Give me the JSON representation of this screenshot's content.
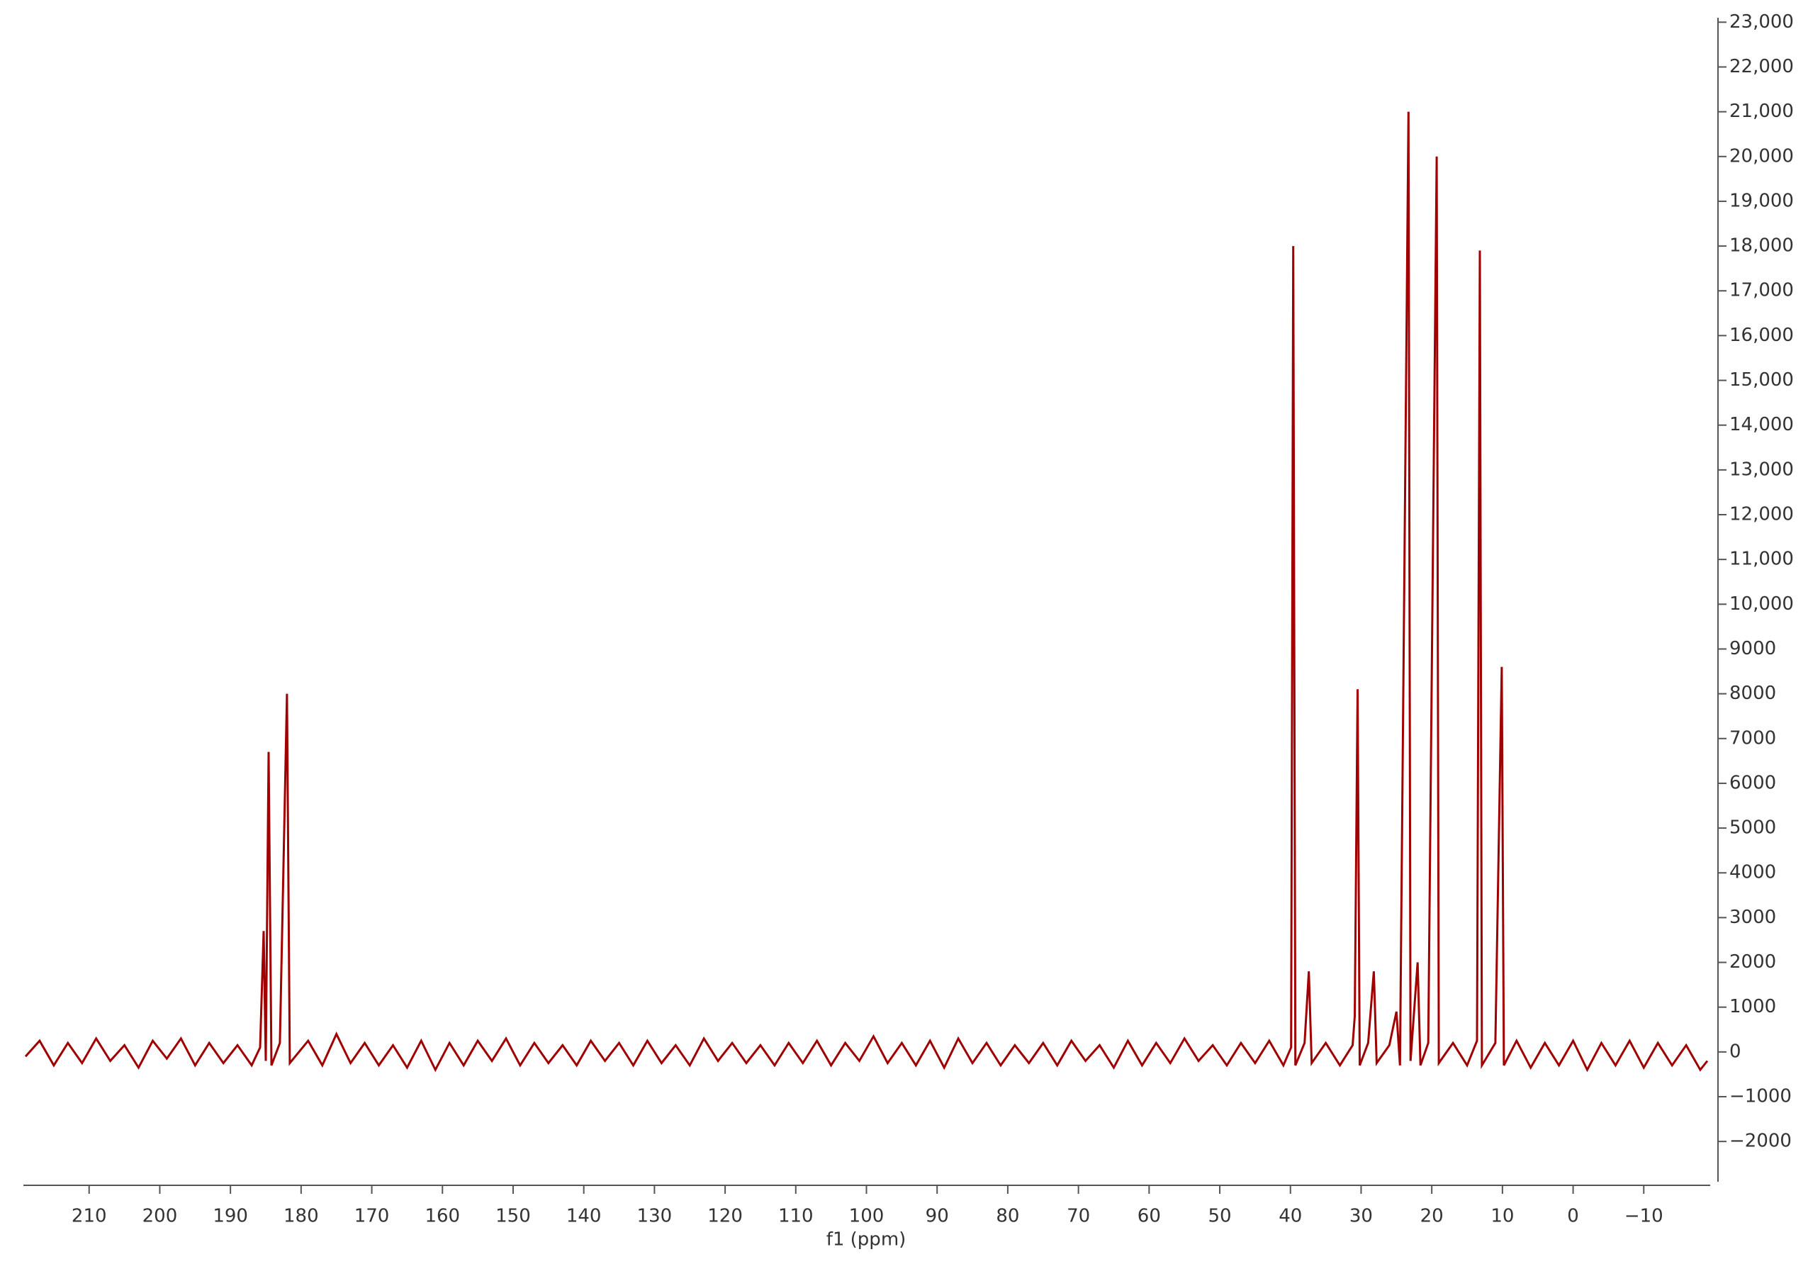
{
  "chart_data": {
    "type": "line",
    "x_label": "f1 (ppm)",
    "color": "#a00000",
    "xlim": [
      219.3,
      -19.4
    ],
    "ylim": [
      -2900,
      23100
    ],
    "xticks": [
      210,
      200,
      190,
      180,
      170,
      160,
      150,
      140,
      130,
      120,
      110,
      100,
      90,
      80,
      70,
      60,
      50,
      40,
      30,
      20,
      10,
      0,
      {
        "value": -10,
        "label": "−10"
      }
    ],
    "yticks": [
      {
        "value": -2000,
        "label": "−2000"
      },
      {
        "value": -1000,
        "label": "−1000"
      },
      0,
      1000,
      2000,
      3000,
      4000,
      5000,
      6000,
      7000,
      8000,
      9000,
      {
        "value": 10000,
        "label": "10,000"
      },
      {
        "value": 11000,
        "label": "11,000"
      },
      {
        "value": 12000,
        "label": "12,000"
      },
      {
        "value": 13000,
        "label": "13,000"
      },
      {
        "value": 14000,
        "label": "14,000"
      },
      {
        "value": 15000,
        "label": "15,000"
      },
      {
        "value": 16000,
        "label": "16,000"
      },
      {
        "value": 17000,
        "label": "17,000"
      },
      {
        "value": 18000,
        "label": "18,000"
      },
      {
        "value": 19000,
        "label": "19,000"
      },
      {
        "value": 20000,
        "label": "20,000"
      },
      {
        "value": 21000,
        "label": "21,000"
      },
      {
        "value": 22000,
        "label": "22,000"
      },
      {
        "value": 23000,
        "label": "23,000"
      }
    ],
    "x": [
      219,
      217,
      215,
      213,
      211,
      209,
      207,
      205,
      203,
      201,
      199,
      197,
      195,
      193,
      191,
      189,
      187,
      185.8,
      185.3,
      185.0,
      184.6,
      184.2,
      183,
      182.0,
      181.6,
      179,
      177,
      175,
      173,
      171,
      169,
      167,
      165,
      163,
      161,
      159,
      157,
      155,
      153,
      151,
      149,
      147,
      145,
      143,
      141,
      139,
      137,
      135,
      133,
      131,
      129,
      127,
      125,
      123,
      121,
      119,
      117,
      115,
      113,
      111,
      109,
      107,
      105,
      103,
      101,
      99,
      97,
      95,
      93,
      91,
      89,
      87,
      85,
      83,
      81,
      79,
      77,
      75,
      73,
      71,
      69,
      67,
      65,
      63,
      61,
      59,
      57,
      55,
      53,
      51,
      49,
      47,
      45,
      43,
      41,
      39.9,
      39.6,
      39.3,
      38,
      37.4,
      37.0,
      35,
      33,
      31.2,
      30.9,
      30.5,
      30.2,
      29,
      28.2,
      27.8,
      26,
      25.0,
      24.5,
      23.3,
      23.0,
      22.0,
      21.6,
      20.5,
      19.3,
      19.0,
      17,
      15,
      13.6,
      13.2,
      12.9,
      11,
      10.1,
      9.8,
      8,
      6,
      4,
      2,
      0,
      -2,
      -4,
      -6,
      -8,
      -10,
      -12,
      -14,
      -16,
      -18,
      -19
    ],
    "values": [
      -100,
      250,
      -300,
      200,
      -250,
      300,
      -200,
      150,
      -350,
      250,
      -150,
      300,
      -300,
      200,
      -250,
      150,
      -300,
      100,
      2700,
      -200,
      6700,
      -300,
      200,
      8000,
      -250,
      250,
      -300,
      400,
      -250,
      200,
      -300,
      150,
      -350,
      250,
      -400,
      200,
      -300,
      250,
      -200,
      300,
      -300,
      200,
      -250,
      150,
      -300,
      250,
      -200,
      200,
      -300,
      250,
      -250,
      150,
      -300,
      300,
      -200,
      200,
      -250,
      150,
      -300,
      200,
      -250,
      250,
      -300,
      200,
      -200,
      350,
      -250,
      200,
      -300,
      250,
      -350,
      300,
      -250,
      200,
      -300,
      150,
      -250,
      200,
      -300,
      250,
      -200,
      150,
      -350,
      250,
      -300,
      200,
      -250,
      300,
      -200,
      150,
      -300,
      200,
      -250,
      250,
      -300,
      100,
      18000,
      -300,
      200,
      1800,
      -250,
      200,
      -300,
      150,
      800,
      8100,
      -300,
      200,
      1800,
      -250,
      150,
      900,
      -300,
      21000,
      -200,
      2000,
      -300,
      200,
      20000,
      -250,
      200,
      -300,
      250,
      17900,
      -300,
      200,
      8600,
      -300,
      250,
      -350,
      200,
      -300,
      250,
      -400,
      200,
      -300,
      250,
      -350,
      200,
      -300,
      150,
      -400,
      -200
    ]
  }
}
